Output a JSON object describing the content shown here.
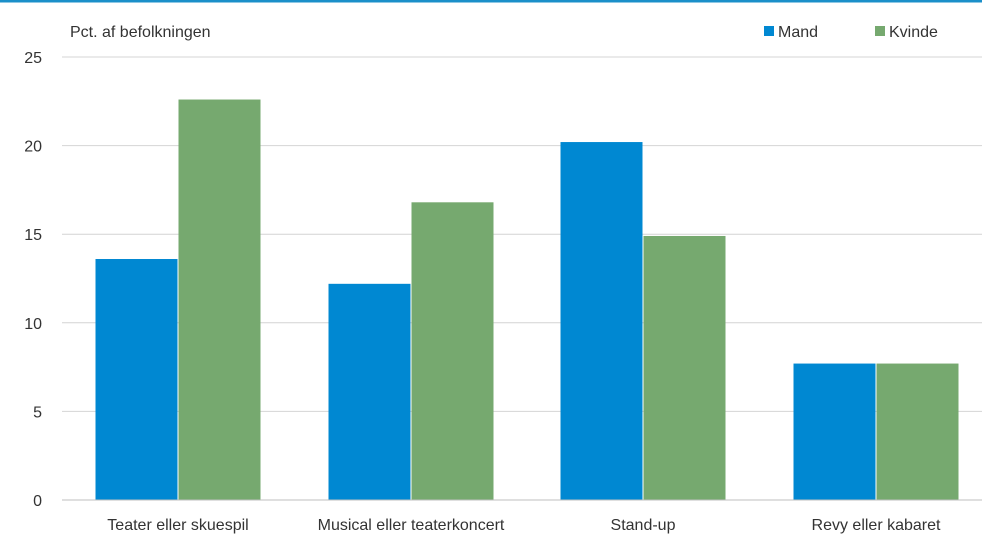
{
  "colors": {
    "top_rule": "#1b8fc9",
    "grid": "#d4d4d4",
    "axis": "#bfbfbf"
  },
  "chart_data": {
    "type": "bar",
    "ylabel": "Pct. af befolkningen",
    "categories": [
      "Teater eller skuespil",
      "Musical eller teaterkoncert",
      "Stand-up",
      "Revy eller kabaret"
    ],
    "series": [
      {
        "name": "Mand",
        "color": "#0088d2",
        "values": [
          13.6,
          12.2,
          20.2,
          7.7
        ]
      },
      {
        "name": "Kvinde",
        "color": "#76a96f",
        "values": [
          22.6,
          16.8,
          14.9,
          7.7
        ]
      }
    ],
    "ylim": [
      0,
      25
    ],
    "yticks": [
      "0",
      "5",
      "10",
      "15",
      "20",
      "25"
    ],
    "grid": true,
    "legend": "top-right"
  }
}
